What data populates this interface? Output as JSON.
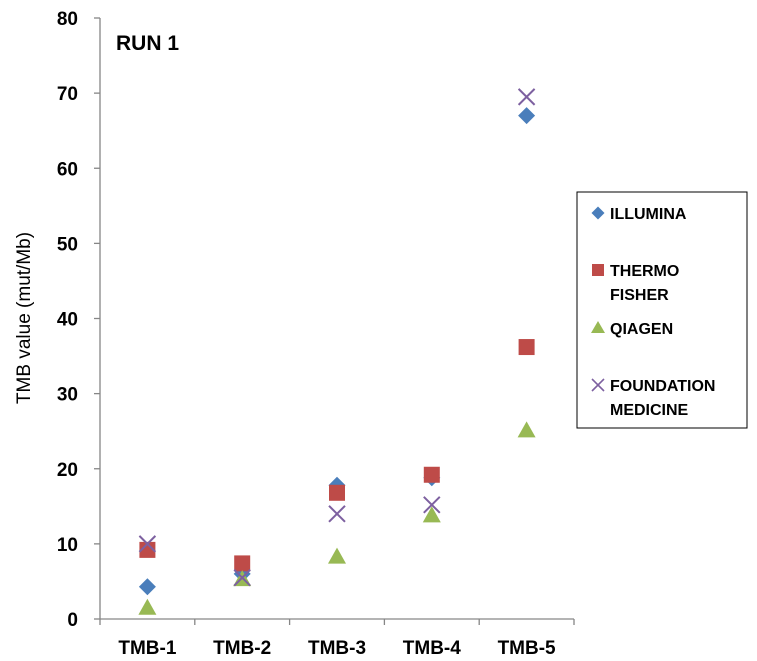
{
  "chart_data": {
    "type": "scatter",
    "title": "RUN 1",
    "xlabel": "",
    "ylabel": "TMB value (mut/Mb)",
    "categories": [
      "TMB-1",
      "TMB-2",
      "TMB-3",
      "TMB-4",
      "TMB-5"
    ],
    "ylim": [
      0,
      80
    ],
    "yticks": [
      0,
      10,
      20,
      30,
      40,
      50,
      60,
      70,
      80
    ],
    "grid": false,
    "legend_position": "right",
    "series": [
      {
        "name": "ILLUMINA",
        "legend_lines": [
          "ILLUMINA"
        ],
        "marker": "diamond",
        "color": "#4a7ebb",
        "values": [
          4.3,
          6.0,
          17.8,
          18.8,
          67.0
        ]
      },
      {
        "name": "THERMO FISHER",
        "legend_lines": [
          "THERMO",
          "FISHER"
        ],
        "marker": "square",
        "color": "#be4b48",
        "values": [
          9.2,
          7.4,
          16.8,
          19.2,
          36.2
        ]
      },
      {
        "name": "QIAGEN",
        "legend_lines": [
          "QIAGEN"
        ],
        "marker": "triangle",
        "color": "#98b954",
        "values": [
          1.5,
          5.3,
          8.3,
          13.8,
          25.1
        ]
      },
      {
        "name": "FOUNDATION MEDICINE",
        "legend_lines": [
          "FOUNDATION",
          "MEDICINE"
        ],
        "marker": "x",
        "color": "#7d60a0",
        "values": [
          10.0,
          5.5,
          14.0,
          15.2,
          69.5
        ]
      }
    ]
  }
}
